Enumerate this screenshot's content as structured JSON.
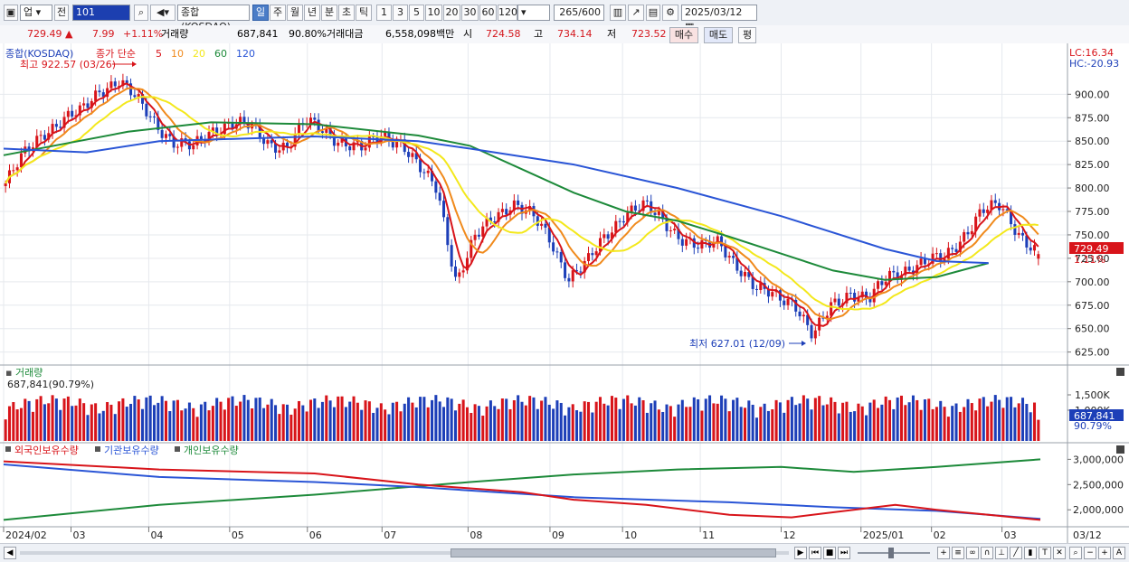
{
  "toolbar": {
    "market": "업",
    "prev_label": "전",
    "code_value": "101",
    "index_name": "종합(KOSDAQ)",
    "period_tabs": [
      {
        "label": "일",
        "active": true
      },
      {
        "label": "주",
        "active": false
      },
      {
        "label": "월",
        "active": false
      },
      {
        "label": "년",
        "active": false
      },
      {
        "label": "분",
        "active": false
      },
      {
        "label": "초",
        "active": false
      },
      {
        "label": "틱",
        "active": false
      }
    ],
    "interval_buttons": [
      "1",
      "3",
      "5",
      "10",
      "20",
      "30",
      "60",
      "120"
    ],
    "count": "265",
    "count_total": "/600",
    "date": "2025/03/12"
  },
  "info": {
    "price": "729.49",
    "change": "7.99",
    "change_pct": "+1.11%",
    "volume_label": "거래량",
    "volume": "687,841",
    "volume_pct": "90.80%",
    "amount_label": "거래대금",
    "amount": "6,558,098백만",
    "open_label": "시",
    "open": "724.58",
    "high_label": "고",
    "high": "734.14",
    "low_label": "저",
    "low": "723.52",
    "buy_label": "매수",
    "sell_label": "매도",
    "eval_label": "평"
  },
  "price_panel": {
    "legend_name": "종합(KOSDAQ)",
    "ma_label": "종가 단순",
    "ma_periods": [
      "5",
      "10",
      "20",
      "60",
      "120"
    ],
    "ma_colors": [
      "#d8141a",
      "#f08a1c",
      "#f3e81c",
      "#1d8a3a",
      "#2a55d6"
    ],
    "high_annotation": "최고 922.57 (03/26)",
    "low_annotation": "최저 627.01 (12/09)",
    "lc": "LC:16.34",
    "hc": "HC:-20.93",
    "current_tag": "729.49",
    "current_pct": "1.11%",
    "y_ticks": [
      "900.00",
      "875.00",
      "850.00",
      "825.00",
      "800.00",
      "775.00",
      "750.00",
      "725.00",
      "700.00",
      "675.00",
      "650.00",
      "625.00"
    ]
  },
  "volume_panel": {
    "title": "거래량",
    "value_label": "687,841",
    "value_pct": "(90.79%)",
    "y_ticks": [
      "1,500K",
      "1,000K"
    ],
    "current_tag": "687,841",
    "current_pct": "90.79%"
  },
  "holdings_panel": {
    "legend": [
      {
        "name": "외국인보유수량",
        "color": "#d8141a"
      },
      {
        "name": "기관보유수량",
        "color": "#2a55d6"
      },
      {
        "name": "개인보유수량",
        "color": "#1d8a3a"
      }
    ],
    "y_ticks": [
      "3,000,000",
      "2,500,000",
      "2,000,000"
    ]
  },
  "x_axis": {
    "labels": [
      "2024/02",
      "03",
      "04",
      "05",
      "06",
      "07",
      "08",
      "09",
      "10",
      "11",
      "12",
      "2025/01",
      "02",
      "03"
    ],
    "end_label": "03/12"
  },
  "chart_data": {
    "type": "candlestick",
    "title": "종합(KOSDAQ)",
    "ylim": [
      615,
      935
    ],
    "series_high": {
      "value": 922.57,
      "date": "03/26"
    },
    "series_low": {
      "value": 627.01,
      "date": "12/09"
    },
    "last": {
      "close": 729.49,
      "open": 724.58,
      "high": 734.14,
      "low": 723.52
    },
    "close_path": [
      [
        "2024/02",
        805
      ],
      [
        "02b",
        835
      ],
      [
        "02c",
        860
      ],
      [
        "03",
        872
      ],
      [
        "03b",
        880
      ],
      [
        "03c",
        905
      ],
      [
        "03/26",
        915
      ],
      [
        "04",
        893
      ],
      [
        "04b",
        870
      ],
      [
        "04c",
        848
      ],
      [
        "04d",
        842
      ],
      [
        "05",
        862
      ],
      [
        "05b",
        870
      ],
      [
        "05c",
        865
      ],
      [
        "06",
        848
      ],
      [
        "06b",
        845
      ],
      [
        "06c",
        870
      ],
      [
        "06d",
        862
      ],
      [
        "07",
        848
      ],
      [
        "07b",
        840
      ],
      [
        "07c",
        858
      ],
      [
        "07d",
        850
      ],
      [
        "07e",
        820
      ],
      [
        "07f",
        800
      ],
      [
        "08",
        700
      ],
      [
        "08b",
        745
      ],
      [
        "08c",
        770
      ],
      [
        "08d",
        785
      ],
      [
        "09",
        770
      ],
      [
        "09b",
        745
      ],
      [
        "09c",
        705
      ],
      [
        "09d",
        720
      ],
      [
        "09e",
        750
      ],
      [
        "10",
        775
      ],
      [
        "10b",
        780
      ],
      [
        "10c",
        765
      ],
      [
        "10d",
        748
      ],
      [
        "11",
        735
      ],
      [
        "11b",
        742
      ],
      [
        "11c",
        718
      ],
      [
        "11d",
        690
      ],
      [
        "11e",
        685
      ],
      [
        "12",
        680
      ],
      [
        "12/09",
        640
      ],
      [
        "12b",
        675
      ],
      [
        "12c",
        690
      ],
      [
        "12d",
        680
      ],
      [
        "2025/01",
        705
      ],
      [
        "01b",
        715
      ],
      [
        "01c",
        720
      ],
      [
        "02",
        725
      ],
      [
        "02b2",
        750
      ],
      [
        "02c2",
        775
      ],
      [
        "02d2",
        780
      ],
      [
        "03b2",
        752
      ],
      [
        "03/12",
        729.49
      ]
    ],
    "ma": [
      {
        "name": "5",
        "color": "#d8141a"
      },
      {
        "name": "10",
        "color": "#f08a1c"
      },
      {
        "name": "20",
        "color": "#f3e81c"
      },
      {
        "name": "60",
        "color": "#1d8a3a"
      },
      {
        "name": "120",
        "color": "#2a55d6"
      }
    ],
    "ma60_path": [
      [
        0,
        835
      ],
      [
        0.12,
        860
      ],
      [
        0.2,
        870
      ],
      [
        0.3,
        868
      ],
      [
        0.4,
        856
      ],
      [
        0.45,
        845
      ],
      [
        0.5,
        820
      ],
      [
        0.55,
        795
      ],
      [
        0.6,
        775
      ],
      [
        0.65,
        765
      ],
      [
        0.7,
        748
      ],
      [
        0.75,
        730
      ],
      [
        0.8,
        712
      ],
      [
        0.85,
        702
      ],
      [
        0.9,
        705
      ],
      [
        0.95,
        720
      ]
    ],
    "ma120_path": [
      [
        0,
        842
      ],
      [
        0.08,
        838
      ],
      [
        0.15,
        850
      ],
      [
        0.3,
        855
      ],
      [
        0.4,
        850
      ],
      [
        0.45,
        842
      ],
      [
        0.55,
        825
      ],
      [
        0.65,
        800
      ],
      [
        0.75,
        770
      ],
      [
        0.85,
        735
      ],
      [
        0.9,
        722
      ],
      [
        0.95,
        720
      ]
    ],
    "volume_ylim": [
      0,
      2000000
    ],
    "volume_last": 687841,
    "holdings": {
      "ylim": [
        1700000,
        3150000
      ],
      "foreign": [
        [
          0,
          2960000
        ],
        [
          0.15,
          2800000
        ],
        [
          0.3,
          2720000
        ],
        [
          0.4,
          2500000
        ],
        [
          0.5,
          2350000
        ],
        [
          0.55,
          2200000
        ],
        [
          0.62,
          2100000
        ],
        [
          0.7,
          1900000
        ],
        [
          0.76,
          1850000
        ],
        [
          0.8,
          1950000
        ],
        [
          0.86,
          2100000
        ],
        [
          0.9,
          2000000
        ],
        [
          0.95,
          1900000
        ],
        [
          1.0,
          1800000
        ]
      ],
      "institution": [
        [
          0,
          2900000
        ],
        [
          0.15,
          2650000
        ],
        [
          0.3,
          2550000
        ],
        [
          0.4,
          2450000
        ],
        [
          0.55,
          2250000
        ],
        [
          0.7,
          2150000
        ],
        [
          0.8,
          2050000
        ],
        [
          0.9,
          1980000
        ],
        [
          0.95,
          1900000
        ],
        [
          1.0,
          1820000
        ]
      ],
      "individual": [
        [
          0,
          1800000
        ],
        [
          0.15,
          2100000
        ],
        [
          0.3,
          2300000
        ],
        [
          0.45,
          2550000
        ],
        [
          0.55,
          2700000
        ],
        [
          0.65,
          2800000
        ],
        [
          0.75,
          2850000
        ],
        [
          0.82,
          2750000
        ],
        [
          0.9,
          2850000
        ],
        [
          1.0,
          3000000
        ]
      ]
    }
  }
}
